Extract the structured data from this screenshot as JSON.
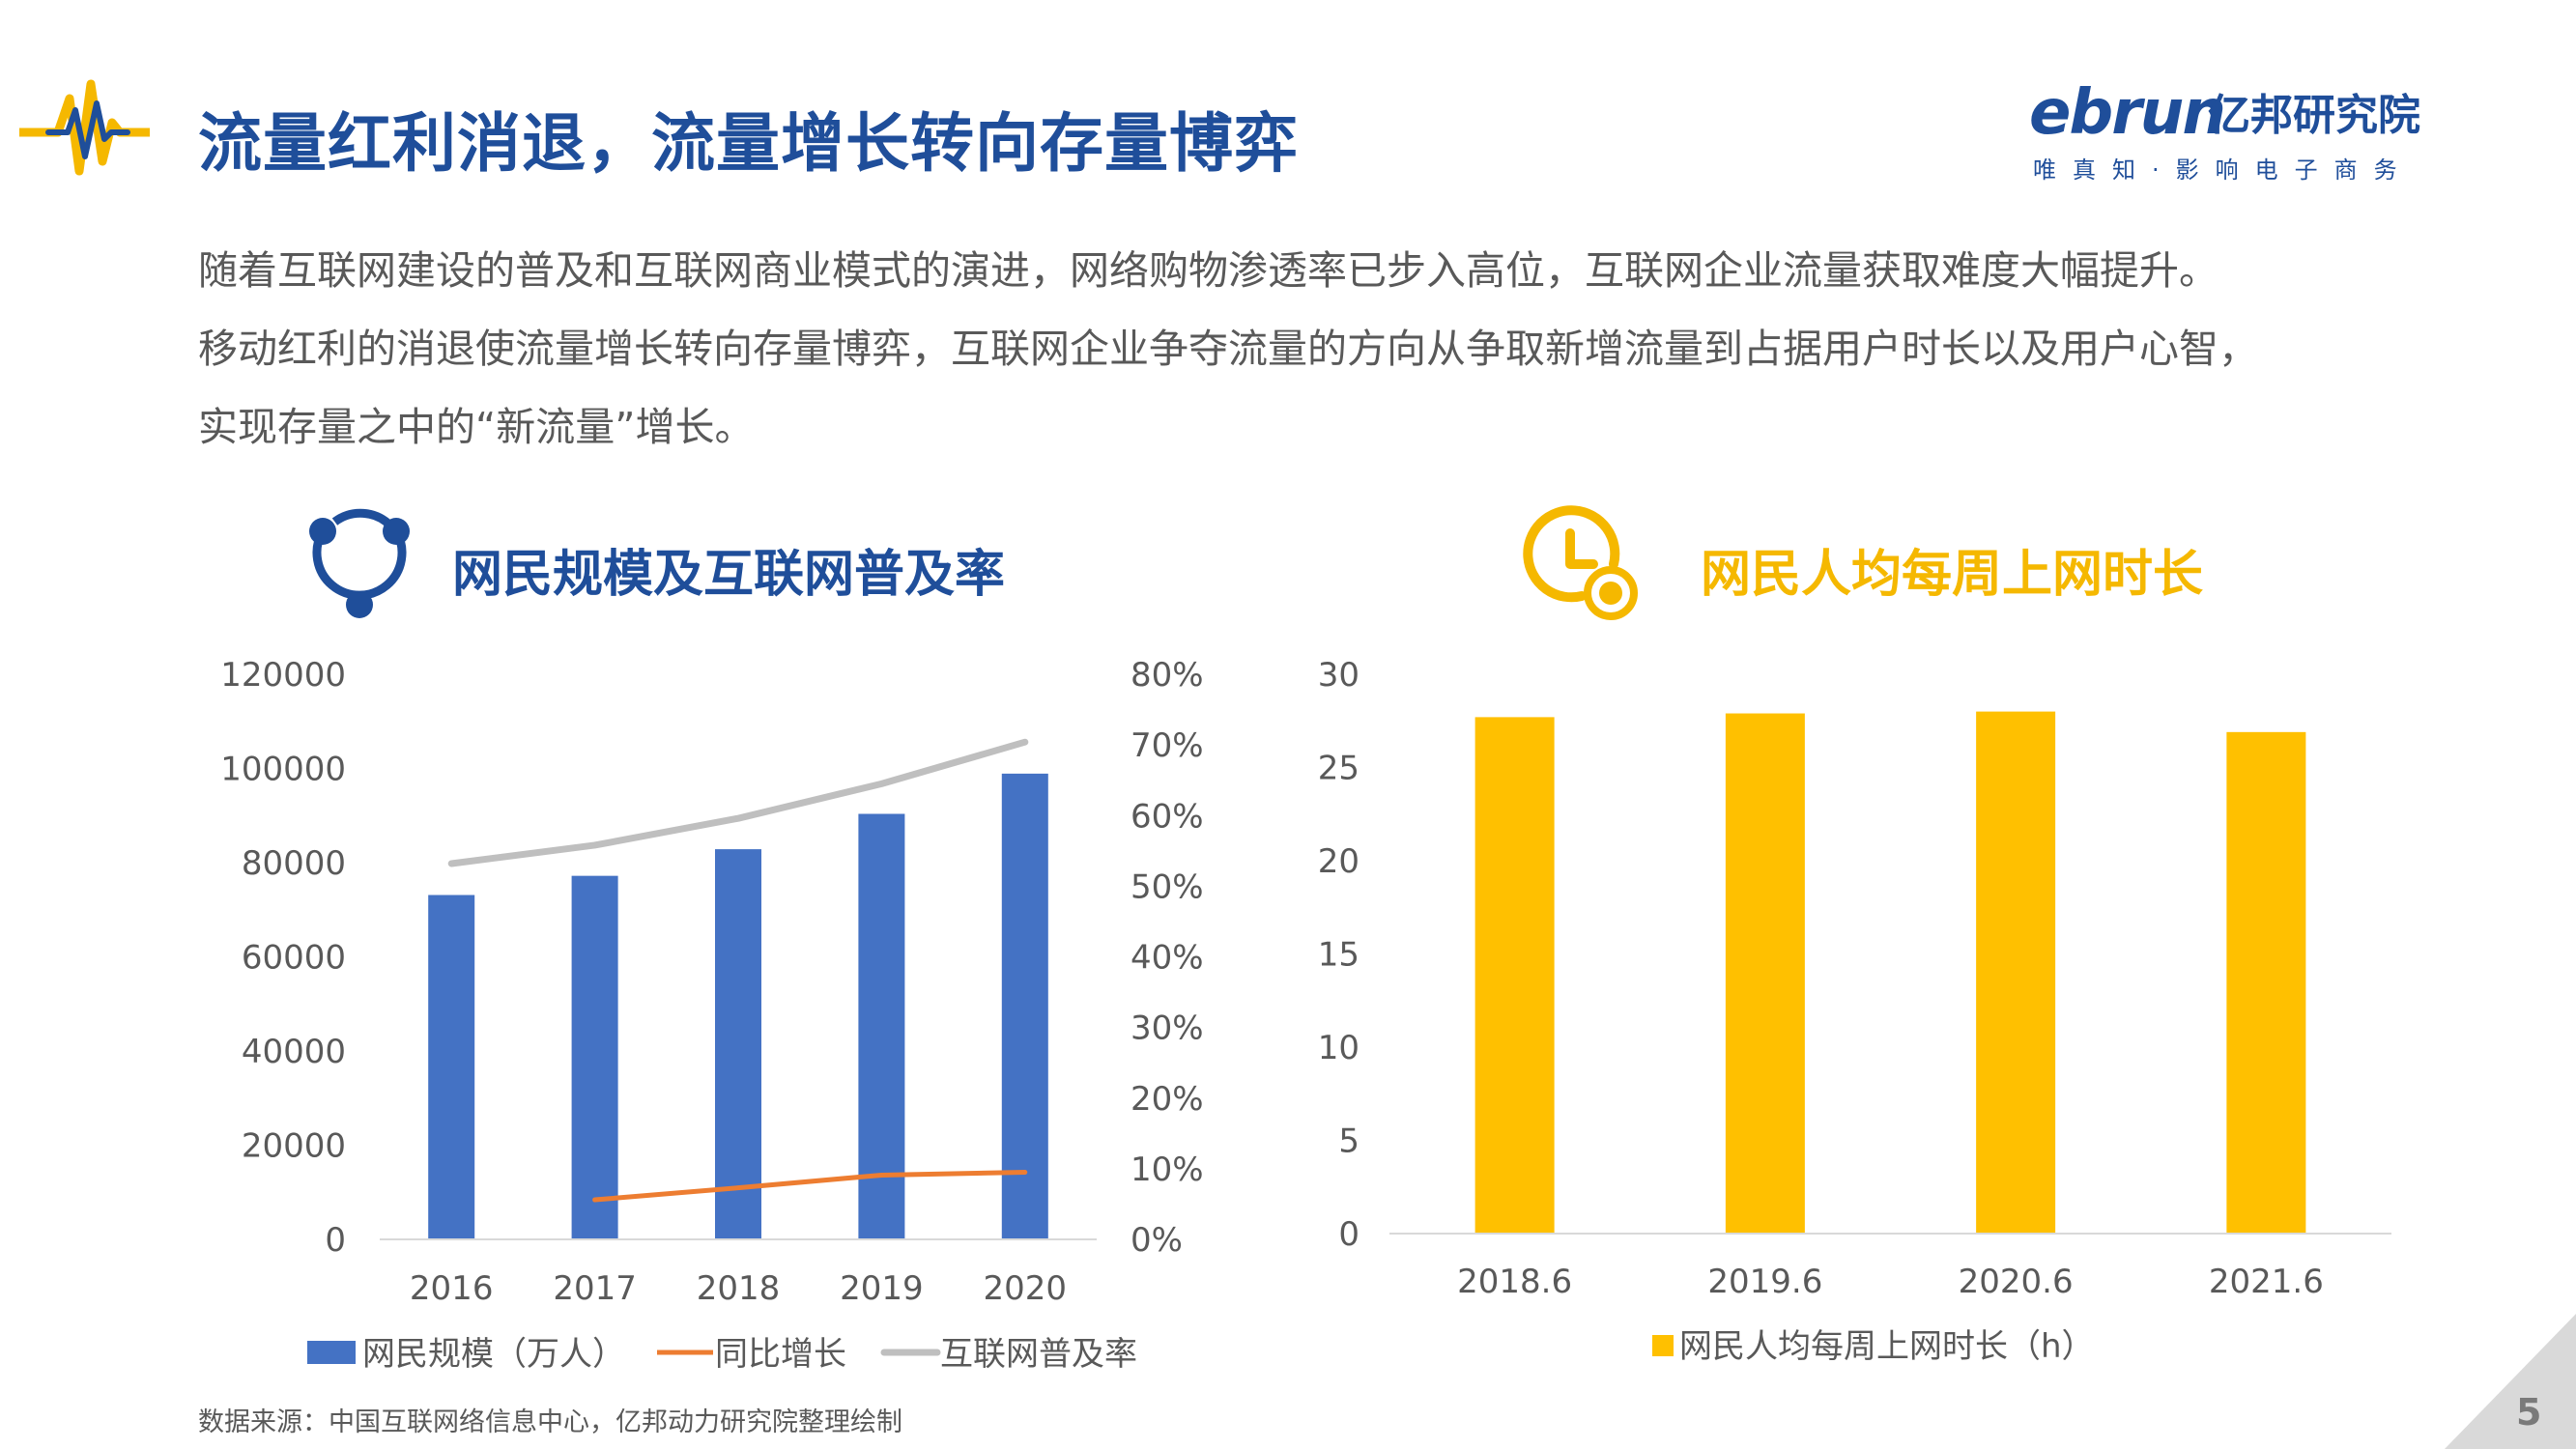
{
  "header": {
    "title": "流量红利消退，流量增长转向存量博弈",
    "icon": "pulse-line-icon",
    "accent_color": "#1F4E9A",
    "highlight_color": "#F5B800"
  },
  "brand": {
    "name_en": "ebrun",
    "name_cn": "亿邦研究院",
    "slogan": "唯真知·影响电子商务"
  },
  "intro": {
    "line1": "随着互联网建设的普及和互联网商业模式的演进，网络购物渗透率已步入高位，互联网企业流量获取难度大幅提升。",
    "line2": "移动红利的消退使流量增长转向存量博弈，互联网企业争夺流量的方向从争取新增流量到占据用户时长以及用户心智，",
    "line3": "实现存量之中的“新流量”增长。"
  },
  "left_section": {
    "title": "网民规模及互联网普及率",
    "icon": "network-share-icon"
  },
  "right_section": {
    "title": "网民人均每周上网时长",
    "icon": "clock-coin-icon"
  },
  "chart_data": [
    {
      "type": "bar",
      "categories": [
        "2016",
        "2017",
        "2018",
        "2019",
        "2020"
      ],
      "series": [
        {
          "name": "网民规模（万人）",
          "type": "bar",
          "axis": "left",
          "color": "#4472C4",
          "values": [
            73125,
            77198,
            82851,
            90359,
            98899
          ]
        },
        {
          "name": "同比增长",
          "type": "line",
          "axis": "right",
          "color": "#ED7D31",
          "values": [
            null,
            5.6,
            7.3,
            9.1,
            9.5
          ]
        },
        {
          "name": "互联网普及率",
          "type": "line",
          "axis": "right",
          "color": "#BFBFBF",
          "values": [
            53.2,
            55.8,
            59.6,
            64.5,
            70.4
          ]
        }
      ],
      "yticks_left": [
        "120000",
        "100000",
        "80000",
        "60000",
        "40000",
        "20000",
        "0"
      ],
      "yticks_right": [
        "80%",
        "70%",
        "60%",
        "50%",
        "40%",
        "30%",
        "20%",
        "10%",
        "0%"
      ],
      "ylim_left": [
        0,
        120000
      ],
      "ylim_right": [
        0,
        80
      ],
      "legend_position": "bottom"
    },
    {
      "type": "bar",
      "categories": [
        "2018.6",
        "2019.6",
        "2020.6",
        "2021.6"
      ],
      "series": [
        {
          "name": "网民人均每周上网时长（h）",
          "color": "#FFC000",
          "values": [
            27.7,
            27.9,
            28.0,
            26.9
          ]
        }
      ],
      "yticks": [
        "30",
        "25",
        "20",
        "15",
        "10",
        "5",
        "0"
      ],
      "ylim": [
        0,
        30
      ],
      "legend_position": "bottom"
    }
  ],
  "source": "数据来源：中国互联网络信息中心，亿邦动力研究院整理绘制",
  "page_number": "5"
}
